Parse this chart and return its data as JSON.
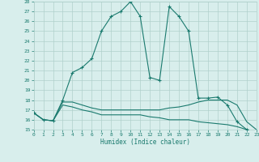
{
  "xlabel": "Humidex (Indice chaleur)",
  "x_values": [
    0,
    1,
    2,
    3,
    4,
    5,
    6,
    7,
    8,
    9,
    10,
    11,
    12,
    13,
    14,
    15,
    16,
    17,
    18,
    19,
    20,
    21,
    22,
    23
  ],
  "line1_y": [
    16.7,
    16.0,
    15.9,
    18.0,
    20.8,
    21.3,
    22.2,
    25.0,
    26.5,
    27.0,
    28.0,
    26.5,
    20.3,
    20.0,
    27.5,
    26.5,
    25.0,
    18.2,
    18.2,
    18.3,
    17.5,
    15.8,
    15.0,
    14.8
  ],
  "line2_y": [
    16.7,
    16.0,
    15.9,
    17.8,
    17.8,
    17.5,
    17.2,
    17.0,
    17.0,
    17.0,
    17.0,
    17.0,
    17.0,
    17.0,
    17.2,
    17.3,
    17.5,
    17.8,
    18.0,
    18.0,
    18.0,
    17.5,
    15.8,
    15.0
  ],
  "line3_y": [
    16.7,
    16.0,
    15.9,
    17.5,
    17.3,
    17.0,
    16.8,
    16.5,
    16.5,
    16.5,
    16.5,
    16.5,
    16.3,
    16.2,
    16.0,
    16.0,
    16.0,
    15.8,
    15.7,
    15.6,
    15.5,
    15.3,
    15.0,
    14.8
  ],
  "line_color": "#1a7a6e",
  "bg_color": "#d8eeec",
  "grid_color": "#b0d0cc",
  "ylim": [
    15,
    28
  ],
  "xlim": [
    0,
    23
  ],
  "yticks": [
    15,
    16,
    17,
    18,
    19,
    20,
    21,
    22,
    23,
    24,
    25,
    26,
    27,
    28
  ],
  "xticks": [
    0,
    1,
    2,
    3,
    4,
    5,
    6,
    7,
    8,
    9,
    10,
    11,
    12,
    13,
    14,
    15,
    16,
    17,
    18,
    19,
    20,
    21,
    22,
    23
  ]
}
